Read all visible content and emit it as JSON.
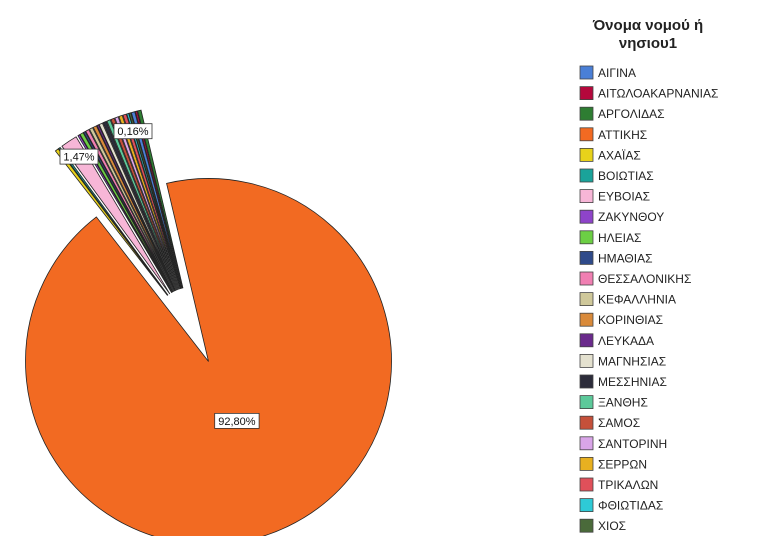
{
  "chart_data": {
    "type": "pie",
    "title": "",
    "legend_title": "Όνομα νομού ή νησιου1",
    "legend_position": "right",
    "categories": [
      "ΑΙΓΙΝΑ",
      "ΑΙΤΩΛΟΑΚΑΡΝΑΝΙΑΣ",
      "ΑΡΓΟΛΙΔΑΣ",
      "ΑΤΤΙΚΗΣ",
      "ΑΧΑΪΑΣ",
      "ΒΟΙΩΤΙΑΣ",
      "ΕΥΒΟΙΑΣ",
      "ΖΑΚΥΝΘΟΥ",
      "ΗΛΕΙΑΣ",
      "ΗΜΑΘΙΑΣ",
      "ΘΕΣΣΑΛΟΝΙΚΗΣ",
      "ΚΕΦΑΛΛΗΝΙΑ",
      "ΚΟΡΙΝΘΙΑΣ",
      "ΛΕΥΚΑΔΑ",
      "ΜΑΓΝΗΣΙΑΣ",
      "ΜΕΣΣΗΝΙΑΣ",
      "ΞΑΝΘΗΣ",
      "ΣΑΜΟΣ",
      "ΣΑΝΤΟΡΙΝΗ",
      "ΣΕΡΡΩΝ",
      "ΤΡΙΚΑΛΩΝ",
      "ΦΘΙΩΤΙΔΑΣ",
      "ΧΙΟΣ"
    ],
    "values": [
      0.3,
      0.16,
      0.3,
      92.8,
      0.3,
      0.16,
      1.47,
      0.16,
      0.3,
      0.16,
      0.3,
      0.3,
      0.3,
      0.16,
      0.3,
      0.3,
      0.3,
      0.3,
      0.3,
      0.3,
      0.3,
      0.16,
      0.16
    ],
    "unit": "%",
    "colors": [
      "#4a7fd6",
      "#b5083c",
      "#2e7d32",
      "#f26a22",
      "#e8d21a",
      "#1aa39a",
      "#f7b6d7",
      "#8e44c9",
      "#6ccf44",
      "#2f4a8a",
      "#f07fb2",
      "#cfc89a",
      "#d98a3a",
      "#6a2a8c",
      "#e4e1cf",
      "#2c2c3a",
      "#5cc99a",
      "#c5503a",
      "#d9a5e8",
      "#e8b020",
      "#e0505a",
      "#2ecad6",
      "#4a6a3a"
    ],
    "exploded": true,
    "data_labels": [
      {
        "category": "ΑΤΤΙΚΗΣ",
        "text": "92,80%"
      },
      {
        "category": "ΕΥΒΟΙΑΣ",
        "text": "1,47%"
      },
      {
        "category": "ΦΘΙΩΤΙΔΑΣ",
        "text": "0,16%"
      }
    ]
  }
}
